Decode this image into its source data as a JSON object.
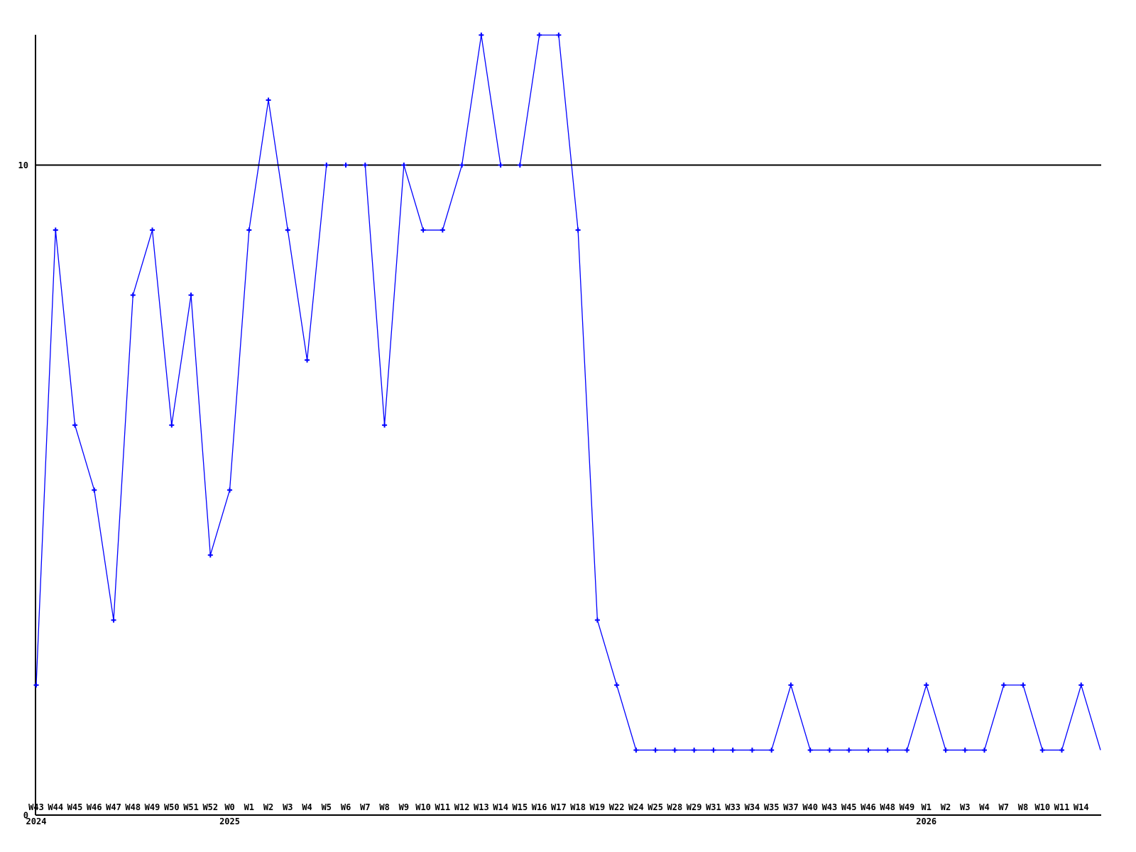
{
  "chart_data": {
    "type": "line",
    "title": "",
    "xlabel": "",
    "ylabel": "",
    "ylim": [
      0,
      12
    ],
    "grid": "single-horizontal-reference-line",
    "gridline_value": 10,
    "legend": "none",
    "line_color": "#0000ff",
    "axis_color": "#000000",
    "background_color": "#ffffff",
    "marker": "plus",
    "categories": [
      "W43",
      "W44",
      "W45",
      "W46",
      "W47",
      "W48",
      "W49",
      "W50",
      "W51",
      "W52",
      "W0",
      "W1",
      "W2",
      "W3",
      "W4",
      "W5",
      "W6",
      "W7",
      "W8",
      "W9",
      "W10",
      "W11",
      "W12",
      "W13",
      "W14",
      "W15",
      "W16",
      "W17",
      "W18",
      "W19",
      "W22",
      "W24",
      "W25",
      "W28",
      "W29",
      "W31",
      "W33",
      "W34",
      "W35",
      "W37",
      "W40",
      "W43",
      "W45",
      "W46",
      "W48",
      "W49",
      "W1",
      "W2",
      "W3",
      "W4",
      "W7",
      "W8",
      "W10",
      "W11",
      "W14"
    ],
    "values": [
      2,
      9,
      6,
      5,
      3,
      8,
      9,
      6,
      8,
      4,
      5,
      9,
      11,
      9,
      7,
      10,
      10,
      10,
      6,
      10,
      9,
      9,
      10,
      12,
      10,
      10,
      12,
      12,
      9,
      3,
      2,
      1,
      1,
      1,
      1,
      1,
      1,
      1,
      1,
      2,
      1,
      1,
      1,
      1,
      1,
      1,
      2,
      1,
      1,
      1,
      2,
      2,
      1,
      1,
      2
    ],
    "trailing_point": {
      "label": "",
      "value": 1,
      "has_marker": false
    },
    "year_rows": [
      {
        "label": "2024",
        "at_index": 0
      },
      {
        "label": "2025",
        "at_index": 10
      },
      {
        "label": "2026",
        "at_index": 46
      }
    ],
    "yticks": [
      {
        "label": "0",
        "value": 0
      },
      {
        "label": "10",
        "value": 10
      }
    ]
  }
}
